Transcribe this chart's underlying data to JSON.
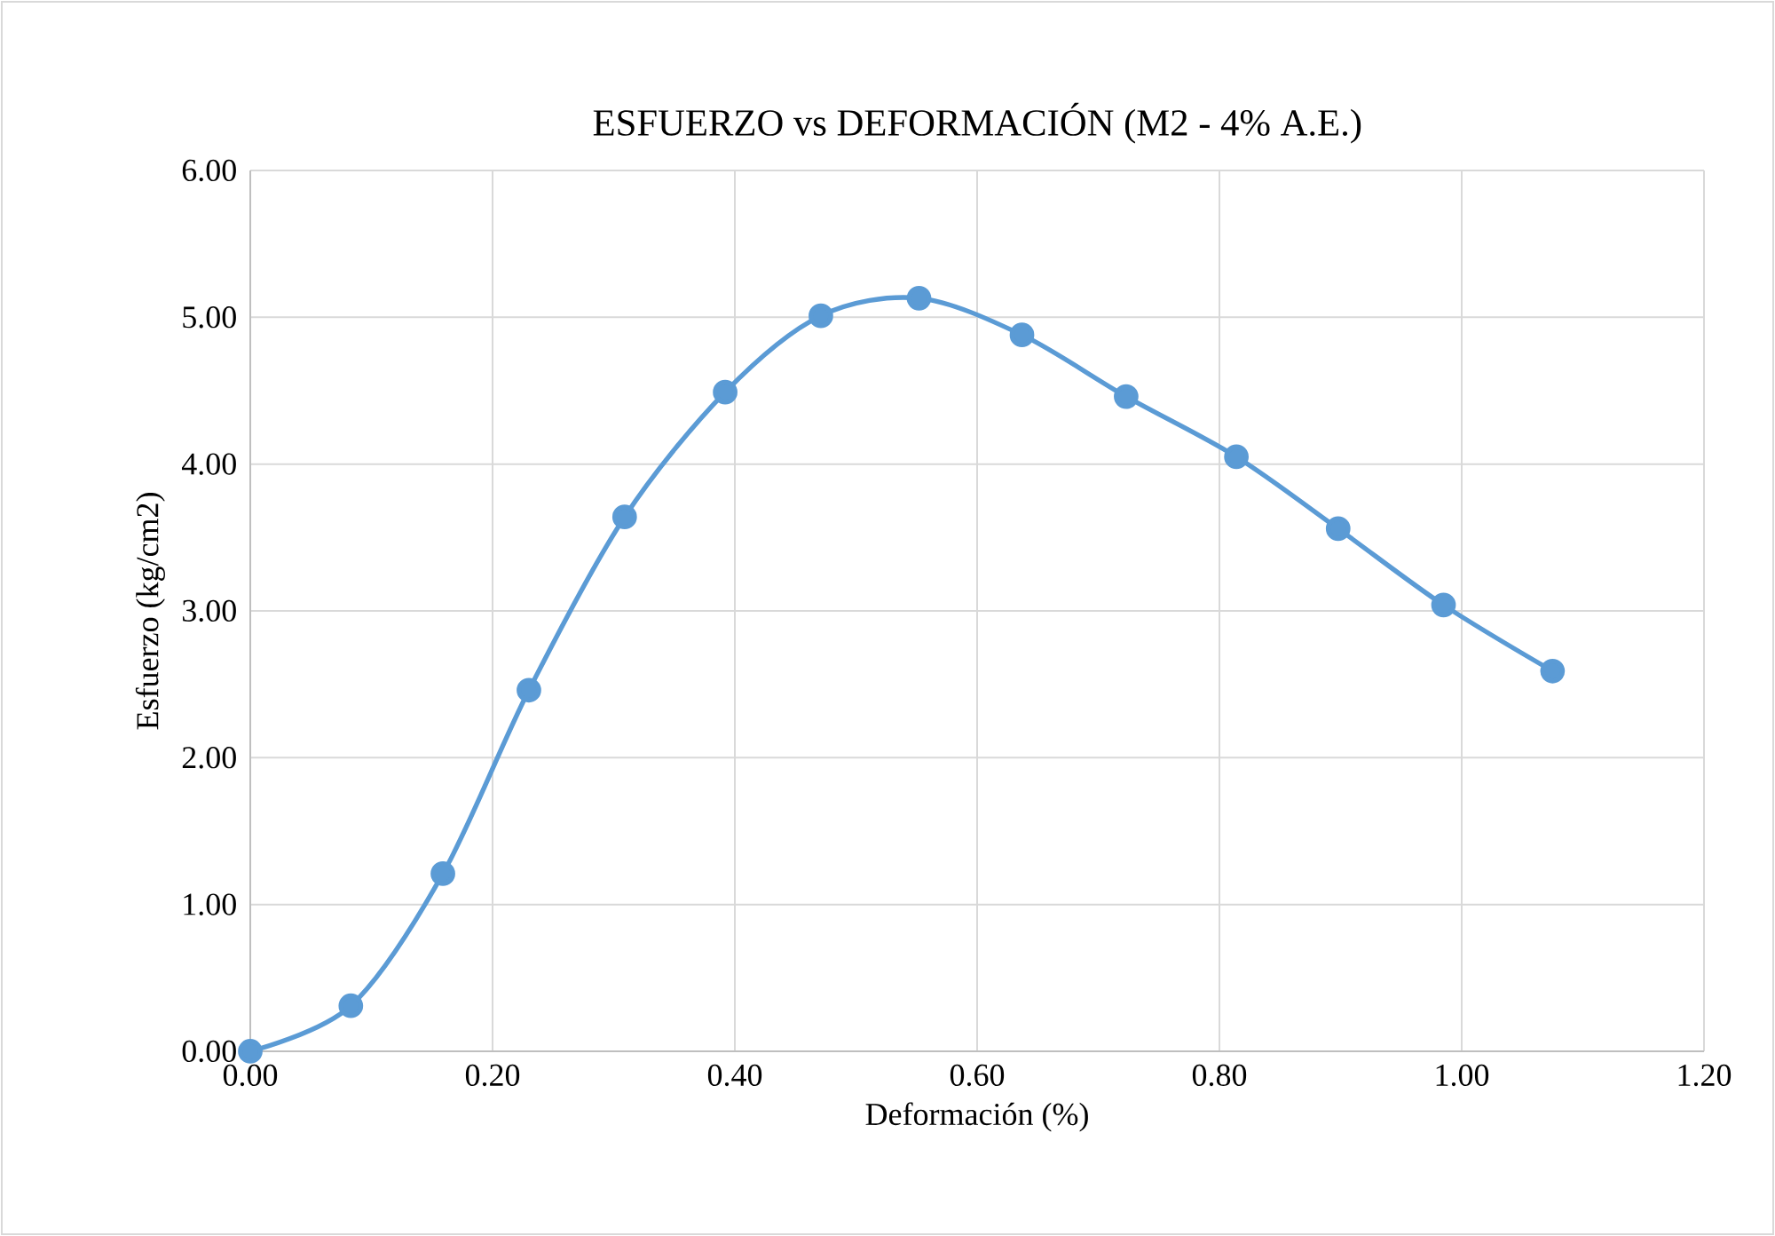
{
  "chart_data": {
    "type": "line",
    "title": "ESFUERZO vs DEFORMACIÓN (M2 - 4% A.E.)",
    "xlabel": "Deformación (%)",
    "ylabel": "Esfuerzo (kg/cm2)",
    "x": [
      0,
      0.083,
      0.159,
      0.23,
      0.309,
      0.392,
      0.471,
      0.552,
      0.637,
      0.723,
      0.814,
      0.898,
      0.985,
      1.075
    ],
    "values": [
      0,
      0.31,
      1.21,
      2.46,
      3.64,
      4.49,
      5.01,
      5.13,
      4.88,
      4.46,
      4.05,
      3.56,
      3.04,
      2.59
    ],
    "color": "#5b9bd5",
    "xlim": [
      0,
      1.2
    ],
    "xticks": [
      {
        "value": 0,
        "label": "0.00"
      },
      {
        "value": 0.2,
        "label": "0.20"
      },
      {
        "value": 0.4,
        "label": "0.40"
      },
      {
        "value": 0.6,
        "label": "0.60"
      },
      {
        "value": 0.8,
        "label": "0.80"
      },
      {
        "value": 1,
        "label": "1.00"
      },
      {
        "value": 1.2,
        "label": "1.20"
      }
    ],
    "ylim": [
      0,
      6
    ],
    "yticks": [
      {
        "value": 0,
        "label": "0.00"
      },
      {
        "value": 1,
        "label": "1.00"
      },
      {
        "value": 2,
        "label": "2.00"
      },
      {
        "value": 3,
        "label": "3.00"
      },
      {
        "value": 4,
        "label": "4.00"
      },
      {
        "value": 5,
        "label": "5.00"
      },
      {
        "value": 6,
        "label": "6.00"
      }
    ],
    "grid": true,
    "marker": "circle",
    "line_style": "solid"
  }
}
